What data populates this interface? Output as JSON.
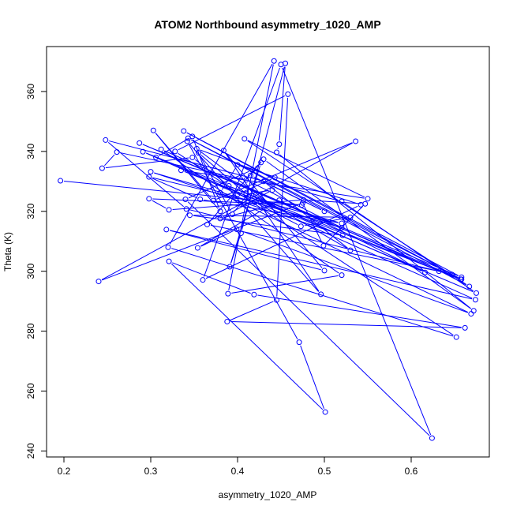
{
  "chart_data": {
    "type": "line",
    "title": "ATOM2 Northbound asymmetry_1020_AMP",
    "xlabel": "asymmetry_1020_AMP",
    "ylabel": "Theta (K)",
    "xlim": [
      0.18,
      0.69
    ],
    "ylim": [
      238,
      375
    ],
    "x_ticks": [
      0.2,
      0.3,
      0.4,
      0.5,
      0.6
    ],
    "y_ticks": [
      240,
      260,
      280,
      300,
      320,
      340,
      360
    ],
    "grid": false,
    "legend": "none",
    "series_color": "#0000ff",
    "marker": "open-circle",
    "series": [
      {
        "name": "",
        "x": [
          0.196,
          0.474,
          0.298,
          0.321,
          0.476,
          0.547,
          0.499,
          0.475,
          0.24,
          0.536,
          0.372,
          0.303,
          0.38,
          0.348,
          0.306,
          0.675,
          0.52,
          0.248,
          0.341,
          0.647,
          0.338,
          0.658,
          0.287,
          0.658,
          0.343,
          0.667,
          0.408,
          0.55,
          0.335,
          0.657,
          0.291,
          0.674,
          0.318,
          0.5,
          0.384,
          0.496,
          0.342,
          0.471,
          0.501,
          0.321,
          0.419,
          0.662,
          0.388,
          0.445,
          0.458,
          0.328,
          0.652,
          0.32,
          0.442,
          0.389,
          0.52,
          0.312,
          0.632,
          0.365,
          0.43,
          0.672,
          0.445,
          0.448,
          0.455,
          0.404,
          0.391,
          0.427,
          0.417,
          0.34,
          0.624,
          0.45,
          0.36,
          0.542,
          0.4,
          0.38,
          0.669,
          0.399,
          0.354,
          0.448,
          0.616,
          0.39,
          0.348,
          0.244,
          0.261,
          0.41,
          0.52,
          0.3,
          0.521,
          0.345,
          0.53,
          0.473,
          0.42,
          0.298,
          0.357,
          0.52,
          0.4,
          0.443,
          0.353,
          0.44,
          0.38,
          0.44,
          0.41,
          0.355,
          0.394,
          0.414,
          0.53,
          0.43,
          0.5,
          0.415
        ],
        "y": [
          330.2,
          322.1,
          324.2,
          320.5,
          323.8,
          322.5,
          308.5,
          322.8,
          296.6,
          343.4,
          323.6,
          347.0,
          320.0,
          345.0,
          338.0,
          292.7,
          323.3,
          343.8,
          320.8,
          298.9,
          346.8,
          298.0,
          342.8,
          297.3,
          344.4,
          294.9,
          344.2,
          324.2,
          333.7,
          297.3,
          339.9,
          290.5,
          313.9,
          300.2,
          340.3,
          292.3,
          343.4,
          276.3,
          253.0,
          303.3,
          292.2,
          281.1,
          283.2,
          290.4,
          359.1,
          340.0,
          278.0,
          308.0,
          370.2,
          292.5,
          298.7,
          340.7,
          300.0,
          315.6,
          337.4,
          286.8,
          339.7,
          342.4,
          369.4,
          312.7,
          301.5,
          336.3,
          333.8,
          324.0,
          244.3,
          369.0,
          297.1,
          322.2,
          335.5,
          326.2,
          285.8,
          314.0,
          307.8,
          323.7,
          299.6,
          328.5,
          338.0,
          334.4,
          339.8,
          330.5,
          314.5,
          333.2,
          312.0,
          318.7,
          318.0,
          315.0,
          323.0,
          331.5,
          324.0,
          316.0,
          325.7,
          331.3,
          340.9,
          322.0,
          317.6,
          327.1,
          325.8,
          339.5,
          319.0,
          326.6,
          307.0,
          330.0,
          320.0,
          332.0
        ]
      }
    ]
  }
}
